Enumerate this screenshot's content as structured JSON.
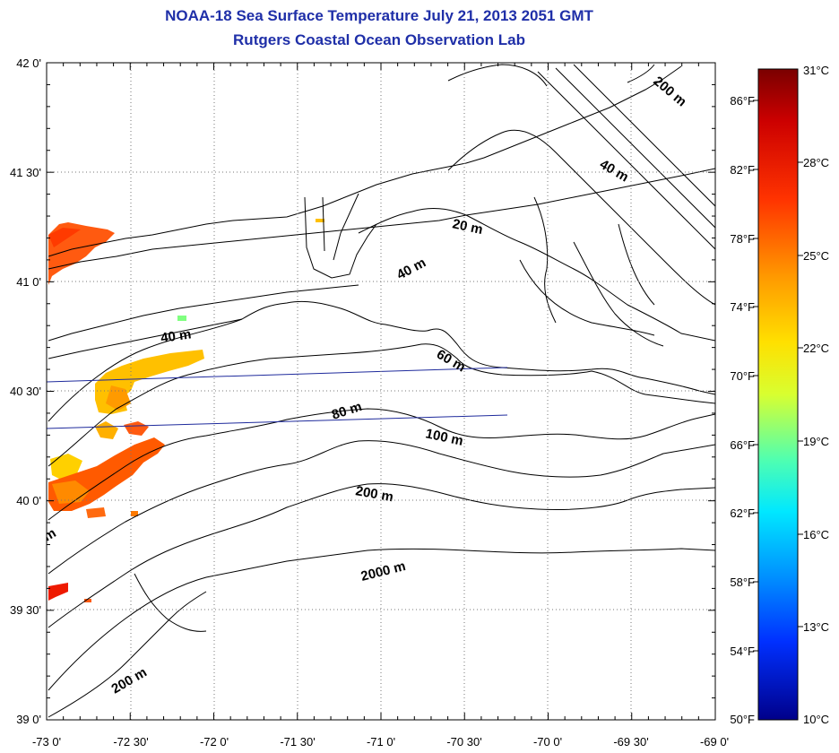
{
  "title": "NOAA-18 Sea Surface Temperature July 21, 2013 2051 GMT",
  "subtitle": "Rutgers Coastal Ocean Observation Lab",
  "map": {
    "lon_range": [
      -73.0,
      -69.0
    ],
    "lat_range": [
      39.0,
      42.0
    ],
    "lon_ticks": [
      "-73 0'",
      "-72 30'",
      "-72 0'",
      "-71 30'",
      "-71 0'",
      "-70 30'",
      "-70 0'",
      "-69 30'",
      "-69 0'"
    ],
    "lat_ticks": [
      "39 0'",
      "39 30'",
      "40 0'",
      "40 30'",
      "41 0'",
      "41 30'",
      "42 0'"
    ],
    "grid": "dotted",
    "contour_labels": [
      "20 m",
      "40 m",
      "40 m",
      "40 m",
      "60 m",
      "80 m",
      "100 m",
      "200 m",
      "200 m",
      "200 m",
      "2000 m",
      "m"
    ]
  },
  "colorbar": {
    "celsius_range": [
      10,
      31
    ],
    "celsius_ticks": [
      "31°C",
      "28°C",
      "25°C",
      "22°C",
      "19°C",
      "16°C",
      "13°C",
      "10°C"
    ],
    "fahrenheit_ticks": [
      "86°F",
      "82°F",
      "78°F",
      "74°F",
      "70°F",
      "66°F",
      "62°F",
      "58°F",
      "54°F",
      "50°F"
    ],
    "colors": [
      "#800000",
      "#c80000",
      "#ff2a00",
      "#ff7a00",
      "#ffc000",
      "#f8ff10",
      "#a0ff60",
      "#40ffc0",
      "#00e8ff",
      "#0090ff",
      "#0030ff",
      "#0000b0",
      "#000080"
    ]
  },
  "colors": {
    "title": "#1f2fa8",
    "track_line": "#1e2a9c",
    "contour": "#000000"
  }
}
